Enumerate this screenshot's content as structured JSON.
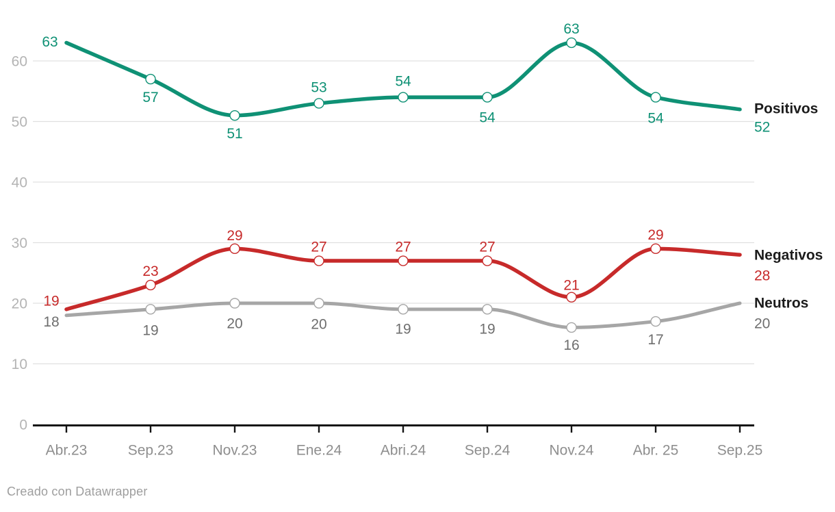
{
  "chart_data": {
    "type": "line",
    "categories": [
      "Abr.23",
      "Sep.23",
      "Nov.23",
      "Ene.24",
      "Abri.24",
      "Sep.24",
      "Nov.24",
      "Abr. 25",
      "Sep.25"
    ],
    "series": [
      {
        "name": "Positivos",
        "color": "#0f9175",
        "line_width": 5.5,
        "values": [
          63,
          57,
          51,
          53,
          54,
          54,
          63,
          54,
          52
        ],
        "end_value": 52,
        "label_offsets": [
          [
            -24,
            -2
          ],
          [
            0,
            26
          ],
          [
            0,
            26
          ],
          [
            0,
            -24
          ],
          [
            0,
            -24
          ],
          [
            0,
            29
          ],
          [
            0,
            -21
          ],
          [
            0,
            30
          ]
        ],
        "end_label": {
          "name_y": 158,
          "value_y": 185
        }
      },
      {
        "name": "Negativos",
        "color": "#c72a2a",
        "line_width": 5.5,
        "values": [
          19,
          23,
          29,
          27,
          27,
          27,
          21,
          29,
          28
        ],
        "end_value": 28,
        "label_offsets": [
          [
            -22,
            -13
          ],
          [
            0,
            -21
          ],
          [
            0,
            -20
          ],
          [
            0,
            -21
          ],
          [
            0,
            -21
          ],
          [
            0,
            -21
          ],
          [
            0,
            -18
          ],
          [
            0,
            -21
          ]
        ],
        "end_label": {
          "name_y": 372,
          "value_y": 402
        }
      },
      {
        "name": "Neutros",
        "color": "#a6a6a6",
        "label_color": "#6e6e6e",
        "line_width": 5,
        "values": [
          18,
          19,
          20,
          20,
          19,
          19,
          16,
          17,
          20
        ],
        "end_value": 20,
        "label_offsets": [
          [
            -22,
            9
          ],
          [
            0,
            30
          ],
          [
            0,
            29
          ],
          [
            0,
            30
          ],
          [
            0,
            28
          ],
          [
            0,
            28
          ],
          [
            0,
            25
          ],
          [
            0,
            26
          ]
        ],
        "end_label": {
          "name_y": 442,
          "value_y": 472
        }
      }
    ],
    "yticks": [
      0,
      10,
      20,
      30,
      40,
      50,
      60
    ],
    "ylim": [
      0,
      66
    ],
    "grid": "horizontal",
    "legend_position": "right",
    "colors": {
      "grid": "#e0e0e0",
      "axis": "#141414",
      "x_tick_labels": "#8e8e8e",
      "y_tick_labels": "#b4b4b4",
      "legend_name": "#1c1c1c",
      "marker_fill": "#ffffff"
    }
  },
  "footer": {
    "credit": "Creado con Datawrapper"
  }
}
